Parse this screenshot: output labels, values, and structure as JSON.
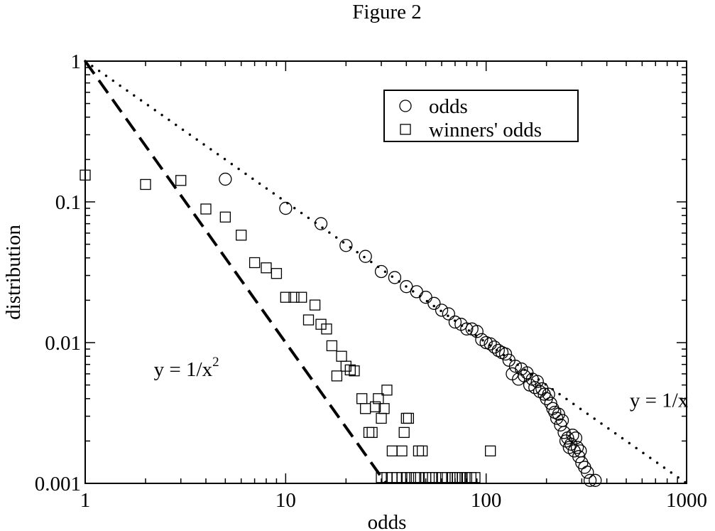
{
  "figure_title": "Figure 2",
  "chart_data": {
    "type": "scatter",
    "xscale": "log",
    "yscale": "log",
    "xlim": [
      1,
      1000
    ],
    "ylim": [
      0.001,
      1
    ],
    "xlabel": "odds",
    "ylabel": "distribution",
    "xticks": [
      {
        "value": 1,
        "label": "1"
      },
      {
        "value": 10,
        "label": "10"
      },
      {
        "value": 100,
        "label": "100"
      },
      {
        "value": 1000,
        "label": "1000"
      }
    ],
    "yticks": [
      {
        "value": 1,
        "label": "1"
      },
      {
        "value": 0.1,
        "label": "0.1"
      },
      {
        "value": 0.01,
        "label": "0.01"
      },
      {
        "value": 0.001,
        "label": "0.001"
      }
    ],
    "grid": false,
    "legend_position": "top-right",
    "series": [
      {
        "name": "odds",
        "marker": "circle",
        "points": [
          [
            5,
            0.145
          ],
          [
            10,
            0.09
          ],
          [
            15,
            0.07
          ],
          [
            20,
            0.049
          ],
          [
            25,
            0.041
          ],
          [
            30,
            0.032
          ],
          [
            35,
            0.029
          ],
          [
            40,
            0.025
          ],
          [
            45,
            0.023
          ],
          [
            50,
            0.021
          ],
          [
            55,
            0.019
          ],
          [
            60,
            0.017
          ],
          [
            65,
            0.016
          ],
          [
            70,
            0.014
          ],
          [
            75,
            0.0135
          ],
          [
            80,
            0.0125
          ],
          [
            85,
            0.0125
          ],
          [
            90,
            0.012
          ],
          [
            95,
            0.0105
          ],
          [
            100,
            0.01
          ],
          [
            105,
            0.0098
          ],
          [
            110,
            0.0093
          ],
          [
            115,
            0.0088
          ],
          [
            120,
            0.0085
          ],
          [
            125,
            0.0083
          ],
          [
            130,
            0.0075
          ],
          [
            135,
            0.006
          ],
          [
            140,
            0.0068
          ],
          [
            145,
            0.0055
          ],
          [
            150,
            0.0065
          ],
          [
            155,
            0.0058
          ],
          [
            160,
            0.0061
          ],
          [
            165,
            0.005
          ],
          [
            170,
            0.0055
          ],
          [
            175,
            0.0048
          ],
          [
            180,
            0.0053
          ],
          [
            185,
            0.0045
          ],
          [
            190,
            0.0047
          ],
          [
            195,
            0.0043
          ],
          [
            200,
            0.004
          ],
          [
            205,
            0.0043
          ],
          [
            210,
            0.0037
          ],
          [
            215,
            0.0034
          ],
          [
            220,
            0.0032
          ],
          [
            225,
            0.0029
          ],
          [
            230,
            0.0031
          ],
          [
            235,
            0.0026
          ],
          [
            240,
            0.0028
          ],
          [
            245,
            0.0023
          ],
          [
            250,
            0.002
          ],
          [
            255,
            0.0021
          ],
          [
            260,
            0.0018
          ],
          [
            265,
            0.0019
          ],
          [
            270,
            0.0022
          ],
          [
            275,
            0.0017
          ],
          [
            280,
            0.0021
          ],
          [
            285,
            0.0018
          ],
          [
            290,
            0.00155
          ],
          [
            295,
            0.0017
          ],
          [
            300,
            0.0014
          ],
          [
            310,
            0.0013
          ],
          [
            320,
            0.0012
          ],
          [
            330,
            0.00105
          ],
          [
            350,
            0.00105
          ]
        ]
      },
      {
        "name": "winners' odds",
        "marker": "square",
        "points": [
          [
            1,
            0.155
          ],
          [
            2,
            0.133
          ],
          [
            3,
            0.142
          ],
          [
            4,
            0.089
          ],
          [
            5,
            0.078
          ],
          [
            6,
            0.058
          ],
          [
            7,
            0.037
          ],
          [
            8,
            0.034
          ],
          [
            9,
            0.031
          ],
          [
            10,
            0.021
          ],
          [
            11,
            0.021
          ],
          [
            12,
            0.021
          ],
          [
            13,
            0.0145
          ],
          [
            14,
            0.0185
          ],
          [
            15,
            0.0135
          ],
          [
            16,
            0.0125
          ],
          [
            17,
            0.0095
          ],
          [
            18,
            0.0058
          ],
          [
            19,
            0.008
          ],
          [
            20,
            0.0068
          ],
          [
            21,
            0.0064
          ],
          [
            22,
            0.0063
          ],
          [
            24,
            0.004
          ],
          [
            25,
            0.0034
          ],
          [
            26,
            0.0023
          ],
          [
            27,
            0.0023
          ],
          [
            28,
            0.0035
          ],
          [
            29,
            0.004
          ],
          [
            30,
            0.0029
          ],
          [
            31,
            0.0034
          ],
          [
            32,
            0.0046
          ],
          [
            34,
            0.0017
          ],
          [
            38,
            0.0017
          ],
          [
            39,
            0.0023
          ],
          [
            40,
            0.0029
          ],
          [
            41,
            0.0029
          ],
          [
            46,
            0.0017
          ],
          [
            48,
            0.0017
          ],
          [
            105,
            0.0017
          ],
          [
            30,
            0.0011
          ],
          [
            32,
            0.0011
          ],
          [
            34,
            0.0011
          ],
          [
            36,
            0.0011
          ],
          [
            38,
            0.0011
          ],
          [
            40,
            0.0011
          ],
          [
            42,
            0.0011
          ],
          [
            44,
            0.0011
          ],
          [
            46,
            0.0011
          ],
          [
            50,
            0.0011
          ],
          [
            52,
            0.0011
          ],
          [
            54,
            0.0011
          ],
          [
            56,
            0.0011
          ],
          [
            60,
            0.0011
          ],
          [
            64,
            0.0011
          ],
          [
            68,
            0.0011
          ],
          [
            70,
            0.0011
          ],
          [
            72,
            0.0011
          ],
          [
            74,
            0.0011
          ],
          [
            76,
            0.0011
          ],
          [
            80,
            0.0011
          ],
          [
            84,
            0.0011
          ],
          [
            88,
            0.0011
          ]
        ]
      }
    ],
    "reference_lines": [
      {
        "formula": "1/x",
        "label": "y = 1/x",
        "style": "dotted",
        "x_range": [
          1,
          1000
        ],
        "label_at": [
          520,
          0.0035
        ]
      },
      {
        "formula": "1/x^2",
        "label_base": "y = 1/x",
        "label_sup": "2",
        "style": "dashed",
        "x_range": [
          1,
          31.6
        ],
        "label_at": [
          2.2,
          0.0058
        ]
      }
    ]
  }
}
